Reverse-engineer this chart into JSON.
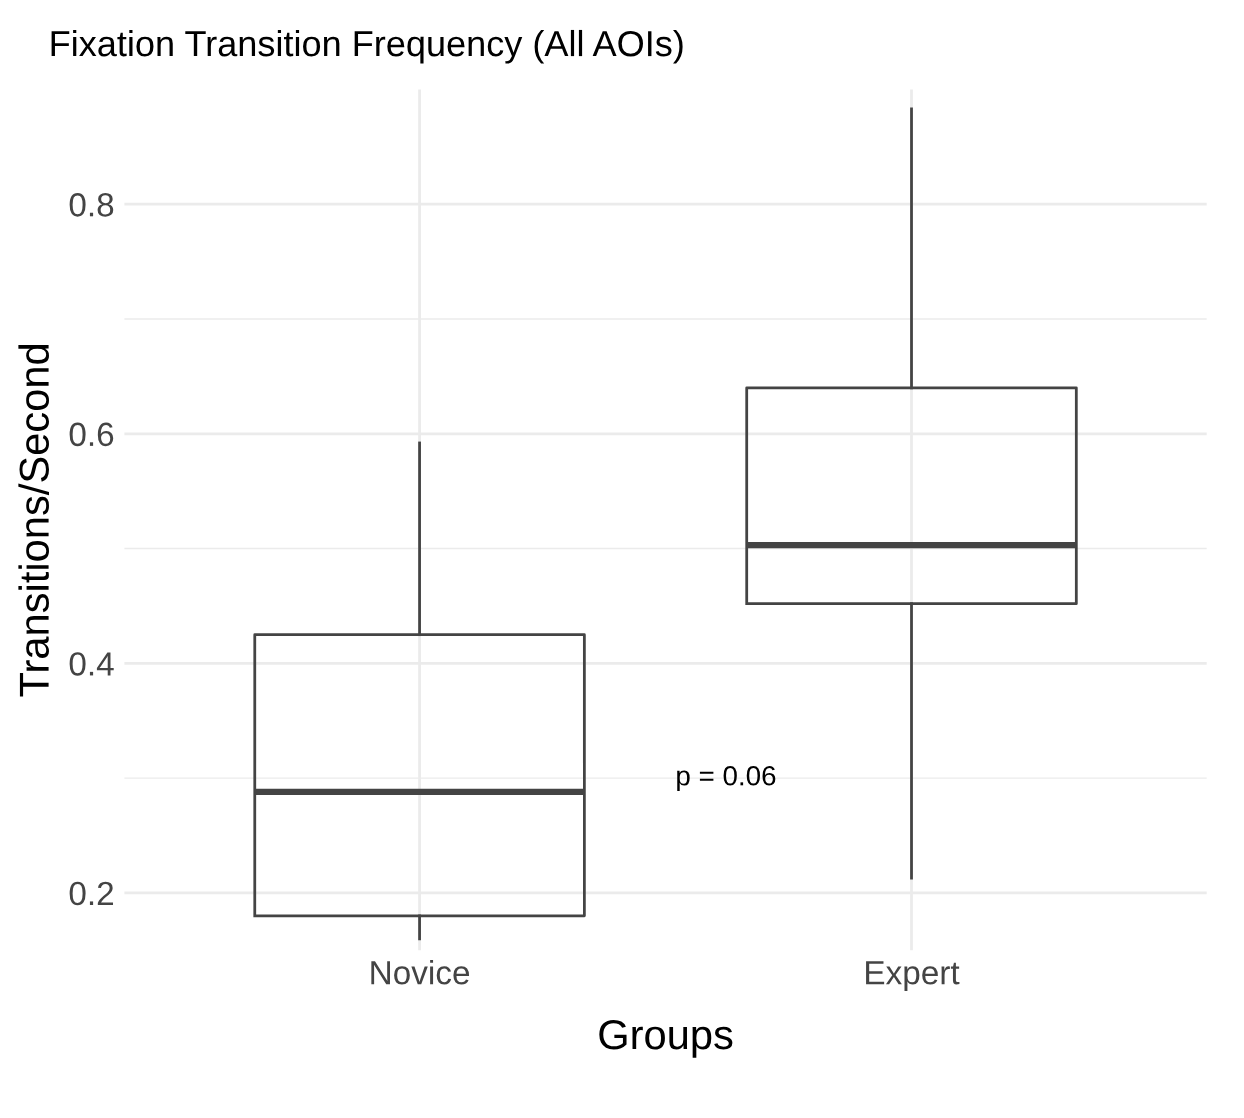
{
  "chart_data": {
    "type": "box",
    "title": "Fixation Transition Frequency (All AOIs)",
    "xlabel": "Groups",
    "ylabel": "Transitions/Second",
    "categories": [
      "Novice",
      "Expert"
    ],
    "boxes": [
      {
        "low": 0.16,
        "q1": 0.18,
        "median": 0.288,
        "q3": 0.425,
        "high": 0.592
      },
      {
        "low": 0.213,
        "q1": 0.452,
        "median": 0.503,
        "q3": 0.64,
        "high": 0.883
      }
    ],
    "ylim": [
      0.15,
      0.9
    ],
    "yticks": [
      0.2,
      {
        "value": 0.3,
        "label": null
      },
      0.4,
      {
        "value": 0.5,
        "label": null
      },
      0.6,
      {
        "value": 0.7,
        "label": null
      },
      0.8
    ],
    "grid": true,
    "annotations": [
      "p = 0.06"
    ]
  }
}
